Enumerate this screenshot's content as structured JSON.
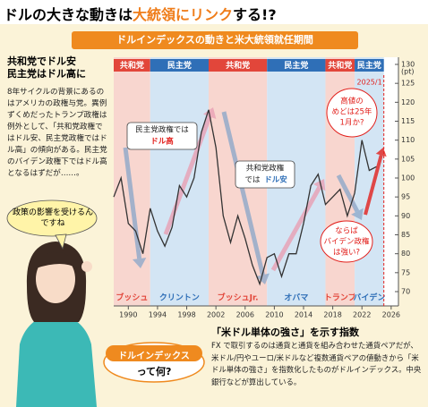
{
  "header": {
    "title_parts": [
      "ドルの大きな動きは",
      "大統領にリンク",
      "する!?"
    ]
  },
  "sidebar": {
    "heading": [
      "共和党でドル安",
      "民主党はドル高に"
    ],
    "body": "8年サイクルの背景にあるのはアメリカの政権与党。異例ずくめだったトランプ政権は例外として、「共和党政権ではドル安、民主党政権ではドル高」の傾向がある。民主党のバイデン政権下ではドル高となるはずだが……。",
    "bubble": "政策の影響を受けるんですね"
  },
  "chart_data": {
    "type": "line",
    "title": "ドルインデックスの動きと米大統領就任期間",
    "unit": "(pt)",
    "x": [
      1988,
      1989,
      1990,
      1991,
      1992,
      1993,
      1994,
      1995,
      1996,
      1997,
      1998,
      1999,
      2000,
      2001,
      2002,
      2003,
      2004,
      2005,
      2006,
      2007,
      2008,
      2009,
      2010,
      2011,
      2012,
      2013,
      2014,
      2015,
      2016,
      2017,
      2018,
      2019,
      2020,
      2021,
      2022,
      2023,
      2024
    ],
    "values": [
      95,
      100,
      88,
      86,
      80,
      92,
      86,
      82,
      87,
      98,
      95,
      100,
      112,
      118,
      108,
      90,
      83,
      90,
      84,
      77,
      72,
      79,
      80,
      74,
      80,
      80,
      88,
      98,
      101,
      93,
      95,
      97,
      90,
      96,
      110,
      102,
      103
    ],
    "color": "#333333",
    "xlim": [
      1988,
      2027
    ],
    "ylim": [
      70,
      130
    ],
    "xticks": [
      1990,
      1994,
      1998,
      2002,
      2006,
      2010,
      2014,
      2018,
      2022,
      2026
    ],
    "yticks": [
      70,
      75,
      80,
      85,
      90,
      95,
      100,
      105,
      110,
      115,
      120,
      125,
      130
    ],
    "periods": [
      {
        "party": "共和党",
        "president": "ブッシュ",
        "start": 1988,
        "end": 1993,
        "color": "#e2463a",
        "band": "#f8d6cf"
      },
      {
        "party": "民主党",
        "president": "クリントン",
        "start": 1993,
        "end": 2001,
        "color": "#2f6fb7",
        "band": "#d3e5f4"
      },
      {
        "party": "共和党",
        "president": "ブッシュJr.",
        "start": 2001,
        "end": 2009,
        "color": "#e2463a",
        "band": "#f8d6cf"
      },
      {
        "party": "民主党",
        "president": "オバマ",
        "start": 2009,
        "end": 2017,
        "color": "#2f6fb7",
        "band": "#d3e5f4"
      },
      {
        "party": "共和党",
        "president": "トランプ",
        "start": 2017,
        "end": 2021,
        "color": "#e2463a",
        "band": "#f8d6cf"
      },
      {
        "party": "民主党",
        "president": "バイデン",
        "start": 2021,
        "end": 2025,
        "color": "#2f6fb7",
        "band": "#d3e5f4"
      }
    ],
    "marker": {
      "value": 2025,
      "label": "2025/1"
    },
    "annotations": [
      {
        "text": [
          "民主党政権では",
          "ドル高"
        ]
      },
      {
        "text": [
          "共和党政権",
          "では",
          "ドル安"
        ]
      },
      {
        "text": [
          "高値の",
          "めどは25年",
          "1月か?"
        ]
      },
      {
        "text": [
          "ならば",
          "バイデン政権",
          "は強い?"
        ]
      }
    ]
  },
  "footer": {
    "badge": [
      "ドルインデックス",
      "って何?"
    ],
    "heading": "「米ドル単体の強さ」を示す指数",
    "body": "FX で取引するのは通貨と通貨を組み合わせた通貨ペアだが、米ドル/円やユーロ/米ドルなど複数通貨ペアの値動きから「米ドル単体の強さ」を指数化したものがドルインデックス。中央銀行などが算出している。"
  }
}
